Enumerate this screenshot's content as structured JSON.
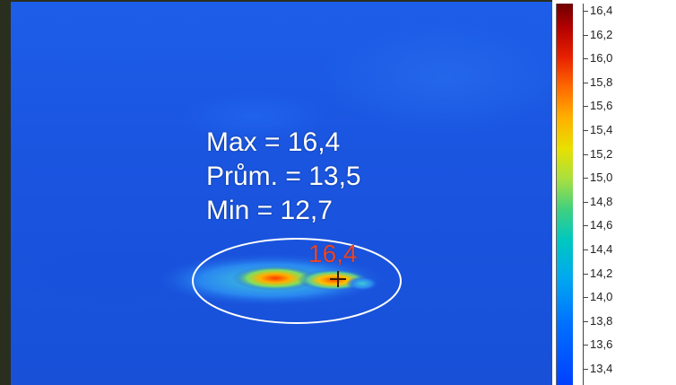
{
  "measurement": {
    "max_text": "Max = 16,4",
    "avg_text": "Prům. = 13,5",
    "min_text": "Min = 12,7",
    "hotspot_label": "16,4"
  },
  "scale": {
    "labels": [
      "16,4",
      "16,2",
      "16,0",
      "15,8",
      "15,6",
      "15,4",
      "15,2",
      "15,0",
      "14,8",
      "14,6",
      "14,4",
      "14,2",
      "14,0",
      "13,8",
      "13,6",
      "13,4"
    ]
  },
  "colors": {
    "background": "#1a55e0",
    "annotation_text": "#ffffff",
    "hotspot_text": "#e8452a"
  }
}
